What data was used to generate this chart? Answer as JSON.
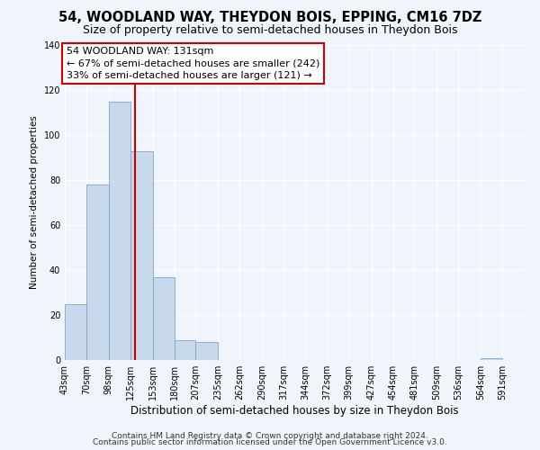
{
  "title": "54, WOODLAND WAY, THEYDON BOIS, EPPING, CM16 7DZ",
  "subtitle": "Size of property relative to semi-detached houses in Theydon Bois",
  "xlabel": "Distribution of semi-detached houses by size in Theydon Bois",
  "ylabel": "Number of semi-detached properties",
  "bin_labels": [
    "43sqm",
    "70sqm",
    "98sqm",
    "125sqm",
    "153sqm",
    "180sqm",
    "207sqm",
    "235sqm",
    "262sqm",
    "290sqm",
    "317sqm",
    "344sqm",
    "372sqm",
    "399sqm",
    "427sqm",
    "454sqm",
    "481sqm",
    "509sqm",
    "536sqm",
    "564sqm",
    "591sqm"
  ],
  "bin_edges": [
    43,
    70,
    98,
    125,
    153,
    180,
    207,
    235,
    262,
    290,
    317,
    344,
    372,
    399,
    427,
    454,
    481,
    509,
    536,
    564,
    591
  ],
  "bar_heights": [
    25,
    78,
    115,
    93,
    37,
    9,
    8,
    0,
    0,
    0,
    0,
    0,
    0,
    0,
    0,
    0,
    0,
    0,
    0,
    1,
    0
  ],
  "bar_color": "#c9d9ec",
  "bar_edge_color": "#7aa8cc",
  "red_line_x": 131,
  "ann_line1": "54 WOODLAND WAY: 131sqm",
  "ann_line2": "← 67% of semi-detached houses are smaller (242)",
  "ann_line3": "33% of semi-detached houses are larger (121) →",
  "annotation_box_color": "#ffffff",
  "annotation_box_edge_color": "#cc0000",
  "red_line_color": "#cc0000",
  "ylim": [
    0,
    140
  ],
  "yticks": [
    0,
    20,
    40,
    60,
    80,
    100,
    120,
    140
  ],
  "footnote1": "Contains HM Land Registry data © Crown copyright and database right 2024.",
  "footnote2": "Contains public sector information licensed under the Open Government Licence v3.0.",
  "background_color": "#f0f5fb",
  "grid_color": "#ffffff",
  "title_fontsize": 10.5,
  "subtitle_fontsize": 9,
  "xlabel_fontsize": 8.5,
  "ylabel_fontsize": 7.5,
  "tick_fontsize": 7,
  "annotation_fontsize": 8,
  "footnote_fontsize": 6.5
}
